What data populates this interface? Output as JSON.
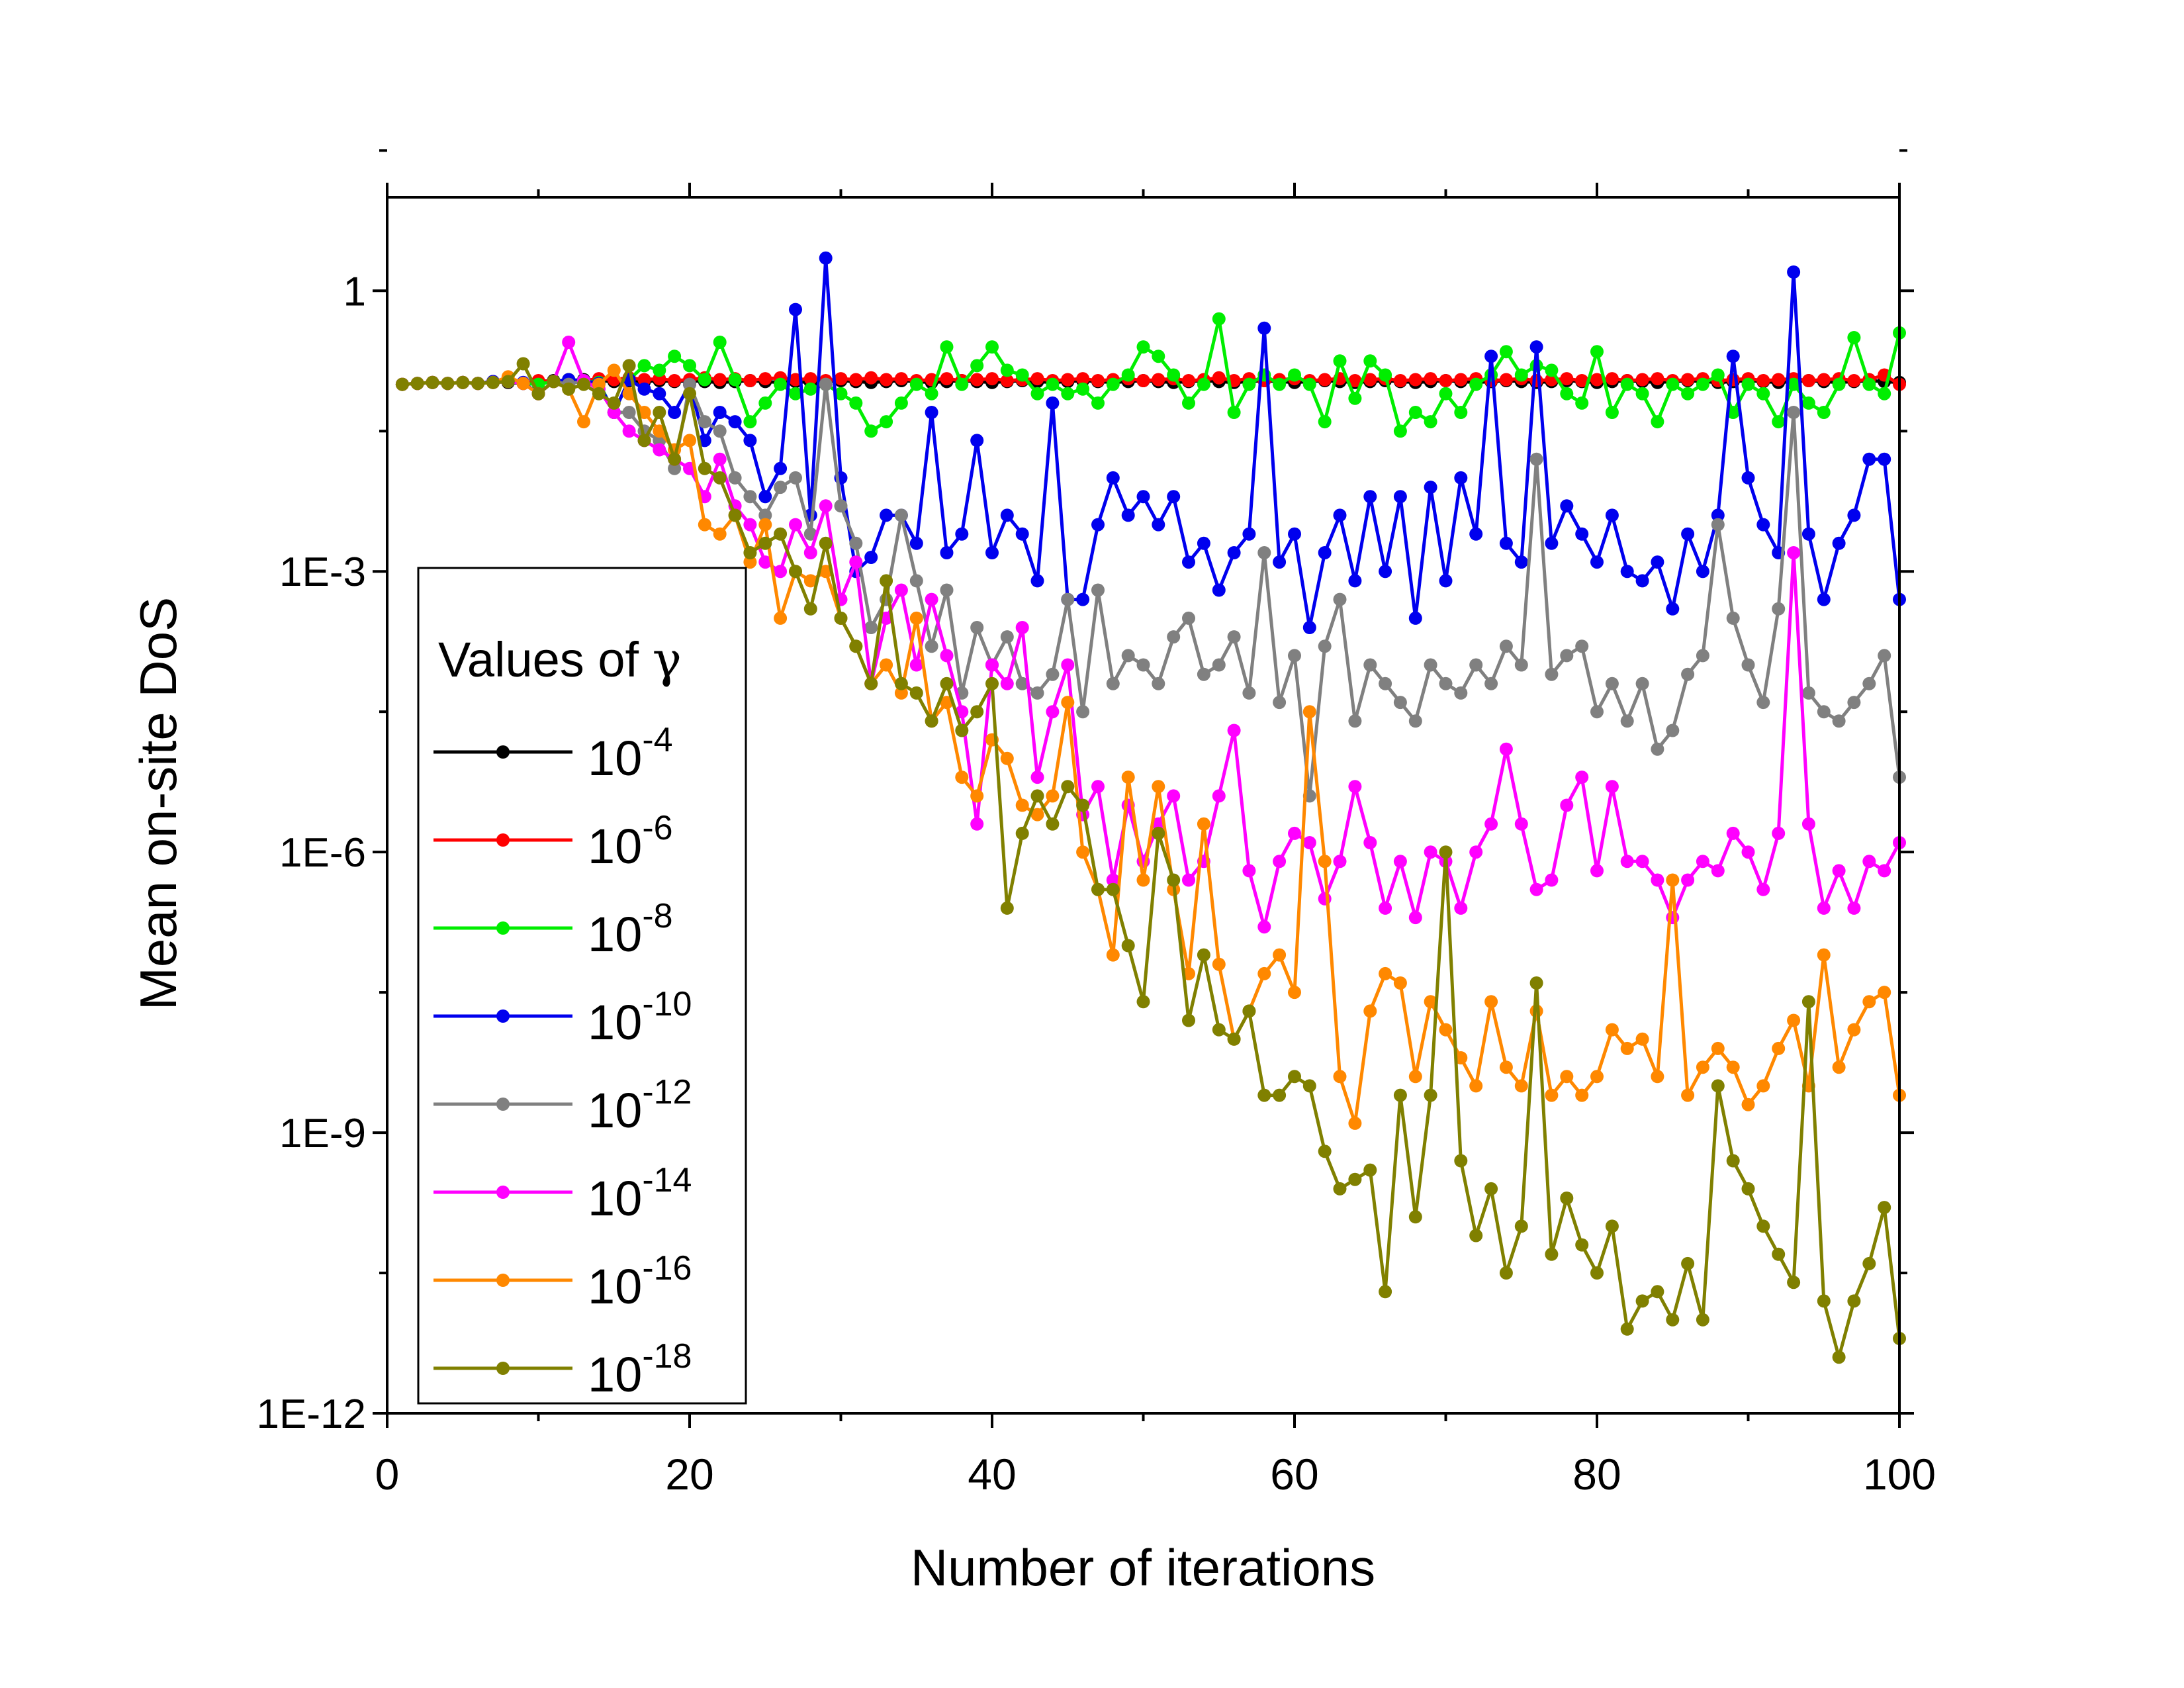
{
  "chart_data": {
    "type": "line",
    "xlabel": "Number of iterations",
    "ylabel": "Mean on-site DoS",
    "x_axis": {
      "range": [
        0,
        100
      ],
      "ticks": [
        0,
        20,
        40,
        60,
        80,
        100
      ],
      "tick_labels": [
        "0",
        "20",
        "40",
        "60",
        "80",
        "100"
      ]
    },
    "y_axis": {
      "scale": "log",
      "range": [
        1e-12,
        10.0
      ],
      "ticks": [
        1,
        0.001,
        1e-06,
        1e-09,
        1e-12
      ],
      "tick_labels": [
        "1",
        "1E-3",
        "1E-6",
        "1E-9",
        "1E-12"
      ]
    },
    "grid": false,
    "legend": {
      "title": "Values of γ",
      "placement": "bottom-left"
    },
    "x": [
      1,
      2,
      3,
      4,
      5,
      6,
      7,
      8,
      9,
      10,
      11,
      12,
      13,
      14,
      15,
      16,
      17,
      18,
      19,
      20,
      21,
      22,
      23,
      24,
      25,
      26,
      27,
      28,
      29,
      30,
      31,
      32,
      33,
      34,
      35,
      36,
      37,
      38,
      39,
      40,
      41,
      42,
      43,
      44,
      45,
      46,
      47,
      48,
      49,
      50,
      51,
      52,
      53,
      54,
      55,
      56,
      57,
      58,
      59,
      60,
      61,
      62,
      63,
      64,
      65,
      66,
      67,
      68,
      69,
      70,
      71,
      72,
      73,
      74,
      75,
      76,
      77,
      78,
      79,
      80,
      81,
      82,
      83,
      84,
      85,
      86,
      87,
      88,
      89,
      90,
      91,
      92,
      93,
      94,
      95,
      96,
      97,
      98,
      99,
      100
    ],
    "series": [
      {
        "name": "10",
        "exponent": "-4",
        "color": "#000000",
        "log10_values": [
          -1.0,
          -0.99,
          -0.98,
          -0.99,
          -0.98,
          -0.99,
          -0.97,
          -0.98,
          -0.99,
          -0.97,
          -0.96,
          -0.97,
          -0.95,
          -0.96,
          -0.97,
          -0.96,
          -0.97,
          -0.96,
          -0.97,
          -0.96,
          -0.97,
          -0.98,
          -0.97,
          -0.96,
          -0.97,
          -0.98,
          -0.97,
          -0.98,
          -0.97,
          -0.96,
          -0.97,
          -0.98,
          -0.97,
          -0.96,
          -0.97,
          -0.98,
          -0.97,
          -0.96,
          -0.97,
          -0.98,
          -0.97,
          -0.96,
          -0.97,
          -0.98,
          -0.97,
          -0.96,
          -0.97,
          -0.98,
          -0.97,
          -0.96,
          -0.97,
          -0.98,
          -0.97,
          -0.96,
          -0.97,
          -0.98,
          -0.97,
          -0.96,
          -0.97,
          -0.98,
          -0.97,
          -0.96,
          -0.97,
          -0.98,
          -0.97,
          -0.96,
          -0.97,
          -0.98,
          -0.97,
          -0.96,
          -0.97,
          -0.98,
          -0.97,
          -0.96,
          -0.97,
          -0.98,
          -0.97,
          -0.96,
          -0.97,
          -0.98,
          -0.97,
          -0.96,
          -0.97,
          -0.98,
          -0.97,
          -0.96,
          -0.97,
          -0.98,
          -0.97,
          -0.96,
          -0.97,
          -0.98,
          -0.97,
          -0.96,
          -0.97,
          -0.98,
          -0.97,
          -0.96,
          -0.97,
          -0.98
        ]
      },
      {
        "name": "10",
        "exponent": "-6",
        "color": "#ff0000",
        "log10_values": [
          -1.0,
          -0.99,
          -0.98,
          -0.99,
          -0.98,
          -0.99,
          -0.98,
          -0.97,
          -0.99,
          -0.96,
          -0.97,
          -0.95,
          -0.96,
          -0.94,
          -0.95,
          -0.93,
          -0.95,
          -0.94,
          -0.96,
          -0.95,
          -0.93,
          -0.95,
          -0.94,
          -0.96,
          -0.94,
          -0.93,
          -0.95,
          -0.94,
          -0.96,
          -0.94,
          -0.95,
          -0.93,
          -0.95,
          -0.94,
          -0.96,
          -0.95,
          -0.94,
          -0.96,
          -0.95,
          -0.94,
          -0.96,
          -0.95,
          -0.94,
          -0.96,
          -0.95,
          -0.94,
          -0.96,
          -0.95,
          -0.94,
          -0.96,
          -0.95,
          -0.94,
          -0.96,
          -0.95,
          -0.93,
          -0.96,
          -0.94,
          -0.96,
          -0.95,
          -0.94,
          -0.96,
          -0.95,
          -0.94,
          -0.96,
          -0.95,
          -0.94,
          -0.96,
          -0.95,
          -0.94,
          -0.96,
          -0.95,
          -0.94,
          -0.96,
          -0.95,
          -0.94,
          -0.96,
          -0.95,
          -0.94,
          -0.96,
          -0.95,
          -0.94,
          -0.96,
          -0.95,
          -0.94,
          -0.96,
          -0.95,
          -0.94,
          -0.96,
          -0.95,
          -0.94,
          -0.96,
          -0.95,
          -0.94,
          -0.96,
          -0.95,
          -0.94,
          -0.96,
          -0.95,
          -0.9,
          -1.0
        ]
      },
      {
        "name": "10",
        "exponent": "-8",
        "color": "#00ee00",
        "log10_values": [
          -1.0,
          -0.99,
          -0.98,
          -0.99,
          -0.98,
          -0.99,
          -0.98,
          -0.97,
          -0.99,
          -1.0,
          -0.97,
          -0.95,
          -0.96,
          -0.98,
          -1.3,
          -0.95,
          -0.8,
          -0.85,
          -0.7,
          -0.8,
          -0.95,
          -0.55,
          -0.95,
          -1.4,
          -1.2,
          -1.0,
          -1.1,
          -1.05,
          -1.0,
          -1.1,
          -1.2,
          -1.5,
          -1.4,
          -1.2,
          -1.0,
          -1.1,
          -0.6,
          -1.0,
          -0.8,
          -0.6,
          -0.85,
          -0.9,
          -1.1,
          -1.0,
          -1.1,
          -1.05,
          -1.2,
          -1.0,
          -0.9,
          -0.6,
          -0.7,
          -0.9,
          -1.2,
          -1.0,
          -0.3,
          -1.3,
          -1.0,
          -0.9,
          -1.0,
          -0.9,
          -1.0,
          -1.4,
          -0.75,
          -1.15,
          -0.75,
          -0.9,
          -1.5,
          -1.3,
          -1.4,
          -1.1,
          -1.3,
          -1.0,
          -0.9,
          -0.65,
          -0.9,
          -0.8,
          -0.85,
          -1.1,
          -1.2,
          -0.65,
          -1.3,
          -1.0,
          -1.1,
          -1.4,
          -1.0,
          -1.1,
          -1.0,
          -0.9,
          -1.3,
          -1.0,
          -1.1,
          -1.4,
          -1.0,
          -1.2,
          -1.3,
          -1.0,
          -0.5,
          -1.0,
          -1.1,
          -0.45
        ]
      },
      {
        "name": "10",
        "exponent": "-10",
        "color": "#0000ee",
        "log10_values": [
          -1.0,
          -0.99,
          -0.98,
          -0.99,
          -0.98,
          -0.99,
          -0.97,
          -0.96,
          -0.98,
          -1.1,
          -0.97,
          -0.95,
          -0.96,
          -0.99,
          -1.3,
          -0.95,
          -1.05,
          -1.1,
          -1.3,
          -1.0,
          -1.6,
          -1.3,
          -1.4,
          -1.6,
          -2.2,
          -1.9,
          -0.2,
          -2.4,
          0.35,
          -2.0,
          -3.0,
          -2.85,
          -2.4,
          -2.4,
          -2.7,
          -1.3,
          -2.8,
          -2.6,
          -1.6,
          -2.8,
          -2.4,
          -2.6,
          -3.1,
          -1.2,
          -3.3,
          -3.3,
          -2.5,
          -2.0,
          -2.4,
          -2.2,
          -2.5,
          -2.2,
          -2.9,
          -2.7,
          -3.2,
          -2.8,
          -2.6,
          -0.4,
          -2.9,
          -2.6,
          -3.6,
          -2.8,
          -2.4,
          -3.1,
          -2.2,
          -3.0,
          -2.2,
          -3.5,
          -2.1,
          -3.1,
          -2.0,
          -2.6,
          -0.7,
          -2.7,
          -2.9,
          -0.6,
          -2.7,
          -2.3,
          -2.6,
          -2.9,
          -2.4,
          -3.0,
          -3.1,
          -2.9,
          -3.4,
          -2.6,
          -3.0,
          -2.4,
          -0.7,
          -2.0,
          -2.5,
          -2.8,
          0.2,
          -2.6,
          -3.3,
          -2.7,
          -2.4,
          -1.8,
          -1.8,
          -3.3
        ]
      },
      {
        "name": "10",
        "exponent": "-12",
        "color": "#808080",
        "log10_values": [
          -1.0,
          -0.99,
          -0.98,
          -0.99,
          -0.98,
          -0.99,
          -0.98,
          -0.97,
          -0.99,
          -1.1,
          -0.97,
          -1.0,
          -0.96,
          -1.05,
          -1.3,
          -1.3,
          -1.5,
          -1.6,
          -1.9,
          -1.0,
          -1.4,
          -1.5,
          -2.0,
          -2.2,
          -2.4,
          -2.1,
          -2.0,
          -2.6,
          -1.0,
          -2.3,
          -2.7,
          -3.6,
          -3.3,
          -2.4,
          -3.1,
          -3.8,
          -3.2,
          -4.3,
          -3.6,
          -4.0,
          -3.7,
          -4.2,
          -4.3,
          -4.1,
          -3.3,
          -4.5,
          -3.2,
          -4.2,
          -3.9,
          -4.0,
          -4.2,
          -3.7,
          -3.5,
          -4.1,
          -4.0,
          -3.7,
          -4.3,
          -2.8,
          -4.4,
          -3.9,
          -5.4,
          -3.8,
          -3.3,
          -4.6,
          -4.0,
          -4.2,
          -4.4,
          -4.6,
          -4.0,
          -4.2,
          -4.3,
          -4.0,
          -4.2,
          -3.8,
          -4.0,
          -1.8,
          -4.1,
          -3.9,
          -3.8,
          -4.5,
          -4.2,
          -4.6,
          -4.2,
          -4.9,
          -4.7,
          -4.1,
          -3.9,
          -2.5,
          -3.5,
          -4.0,
          -4.4,
          -3.4,
          -1.3,
          -4.3,
          -4.5,
          -4.6,
          -4.4,
          -4.2,
          -3.9,
          -5.2
        ]
      },
      {
        "name": "10",
        "exponent": "-14",
        "color": "#ff00ff",
        "log10_values": [
          -1.0,
          -0.99,
          -0.98,
          -0.99,
          -0.98,
          -0.99,
          -0.98,
          -0.97,
          -0.99,
          -1.1,
          -0.97,
          -0.55,
          -0.96,
          -1.05,
          -1.3,
          -1.5,
          -1.6,
          -1.7,
          -1.8,
          -1.9,
          -2.2,
          -1.8,
          -2.3,
          -2.5,
          -2.9,
          -3.0,
          -2.5,
          -2.8,
          -2.3,
          -3.3,
          -2.9,
          -4.2,
          -3.5,
          -3.2,
          -4.0,
          -3.3,
          -3.9,
          -4.5,
          -5.7,
          -4.0,
          -4.2,
          -3.6,
          -5.2,
          -4.5,
          -4.0,
          -5.6,
          -5.3,
          -6.3,
          -5.5,
          -6.1,
          -5.7,
          -5.4,
          -6.3,
          -6.1,
          -5.4,
          -4.7,
          -6.2,
          -6.8,
          -6.1,
          -5.8,
          -5.9,
          -6.5,
          -6.1,
          -5.3,
          -5.9,
          -6.6,
          -6.1,
          -6.7,
          -6.0,
          -6.1,
          -6.6,
          -6.0,
          -5.7,
          -4.9,
          -5.7,
          -6.4,
          -6.3,
          -5.5,
          -5.2,
          -6.2,
          -5.3,
          -6.1,
          -6.1,
          -6.3,
          -6.7,
          -6.3,
          -6.1,
          -6.2,
          -5.8,
          -6.0,
          -6.4,
          -5.8,
          -2.8,
          -5.7,
          -6.6,
          -6.2,
          -6.6,
          -6.1,
          -6.2,
          -5.9
        ]
      },
      {
        "name": "10",
        "exponent": "-16",
        "color": "#ff8800",
        "log10_values": [
          -1.0,
          -0.99,
          -0.98,
          -0.99,
          -0.98,
          -0.99,
          -0.98,
          -0.92,
          -0.99,
          -1.1,
          -0.97,
          -1.05,
          -1.4,
          -1.0,
          -0.85,
          -1.1,
          -1.3,
          -1.5,
          -1.7,
          -1.6,
          -2.5,
          -2.6,
          -2.4,
          -2.9,
          -2.5,
          -3.5,
          -3.0,
          -3.1,
          -3.0,
          -3.5,
          -3.8,
          -4.2,
          -4.0,
          -4.3,
          -3.5,
          -4.6,
          -4.4,
          -5.2,
          -5.4,
          -4.8,
          -5.0,
          -5.5,
          -5.6,
          -5.4,
          -4.4,
          -6.0,
          -6.4,
          -7.1,
          -5.2,
          -6.3,
          -5.3,
          -6.4,
          -7.3,
          -5.7,
          -7.2,
          -8.0,
          -7.7,
          -7.3,
          -7.1,
          -7.5,
          -4.5,
          -6.1,
          -8.4,
          -8.9,
          -7.7,
          -7.3,
          -7.4,
          -8.4,
          -7.6,
          -7.9,
          -8.2,
          -8.5,
          -7.6,
          -8.3,
          -8.5,
          -7.7,
          -8.6,
          -8.4,
          -8.6,
          -8.4,
          -7.9,
          -8.1,
          -8.0,
          -8.4,
          -6.3,
          -8.6,
          -8.3,
          -8.1,
          -8.3,
          -8.7,
          -8.5,
          -8.1,
          -7.8,
          -8.5,
          -7.1,
          -8.3,
          -7.9,
          -7.6,
          -7.5,
          -8.6
        ]
      },
      {
        "name": "10",
        "exponent": "-18",
        "color": "#808000",
        "log10_values": [
          -1.0,
          -0.99,
          -0.98,
          -0.99,
          -0.98,
          -0.99,
          -0.98,
          -0.97,
          -0.78,
          -1.1,
          -0.97,
          -1.05,
          -1.0,
          -1.1,
          -1.2,
          -0.8,
          -1.6,
          -1.3,
          -1.8,
          -1.1,
          -1.9,
          -2.0,
          -2.4,
          -2.8,
          -2.7,
          -2.6,
          -3.0,
          -3.4,
          -2.7,
          -3.5,
          -3.8,
          -4.2,
          -3.1,
          -4.2,
          -4.3,
          -4.6,
          -4.2,
          -4.7,
          -4.5,
          -4.2,
          -6.6,
          -5.8,
          -5.4,
          -5.7,
          -5.3,
          -5.5,
          -6.4,
          -6.4,
          -7.0,
          -7.6,
          -5.8,
          -6.3,
          -7.8,
          -7.1,
          -7.9,
          -8.0,
          -7.7,
          -8.6,
          -8.6,
          -8.4,
          -8.5,
          -9.2,
          -9.6,
          -9.5,
          -9.4,
          -10.7,
          -8.6,
          -9.9,
          -8.6,
          -6.0,
          -9.3,
          -10.1,
          -9.6,
          -10.5,
          -10.0,
          -7.4,
          -10.3,
          -9.7,
          -10.2,
          -10.5,
          -10.0,
          -11.1,
          -10.8,
          -10.7,
          -11.0,
          -10.4,
          -11.0,
          -8.5,
          -9.3,
          -9.6,
          -10.0,
          -10.3,
          -10.6,
          -7.6,
          -10.8,
          -11.4,
          -10.8,
          -10.4,
          -9.8,
          -11.2
        ]
      }
    ]
  }
}
